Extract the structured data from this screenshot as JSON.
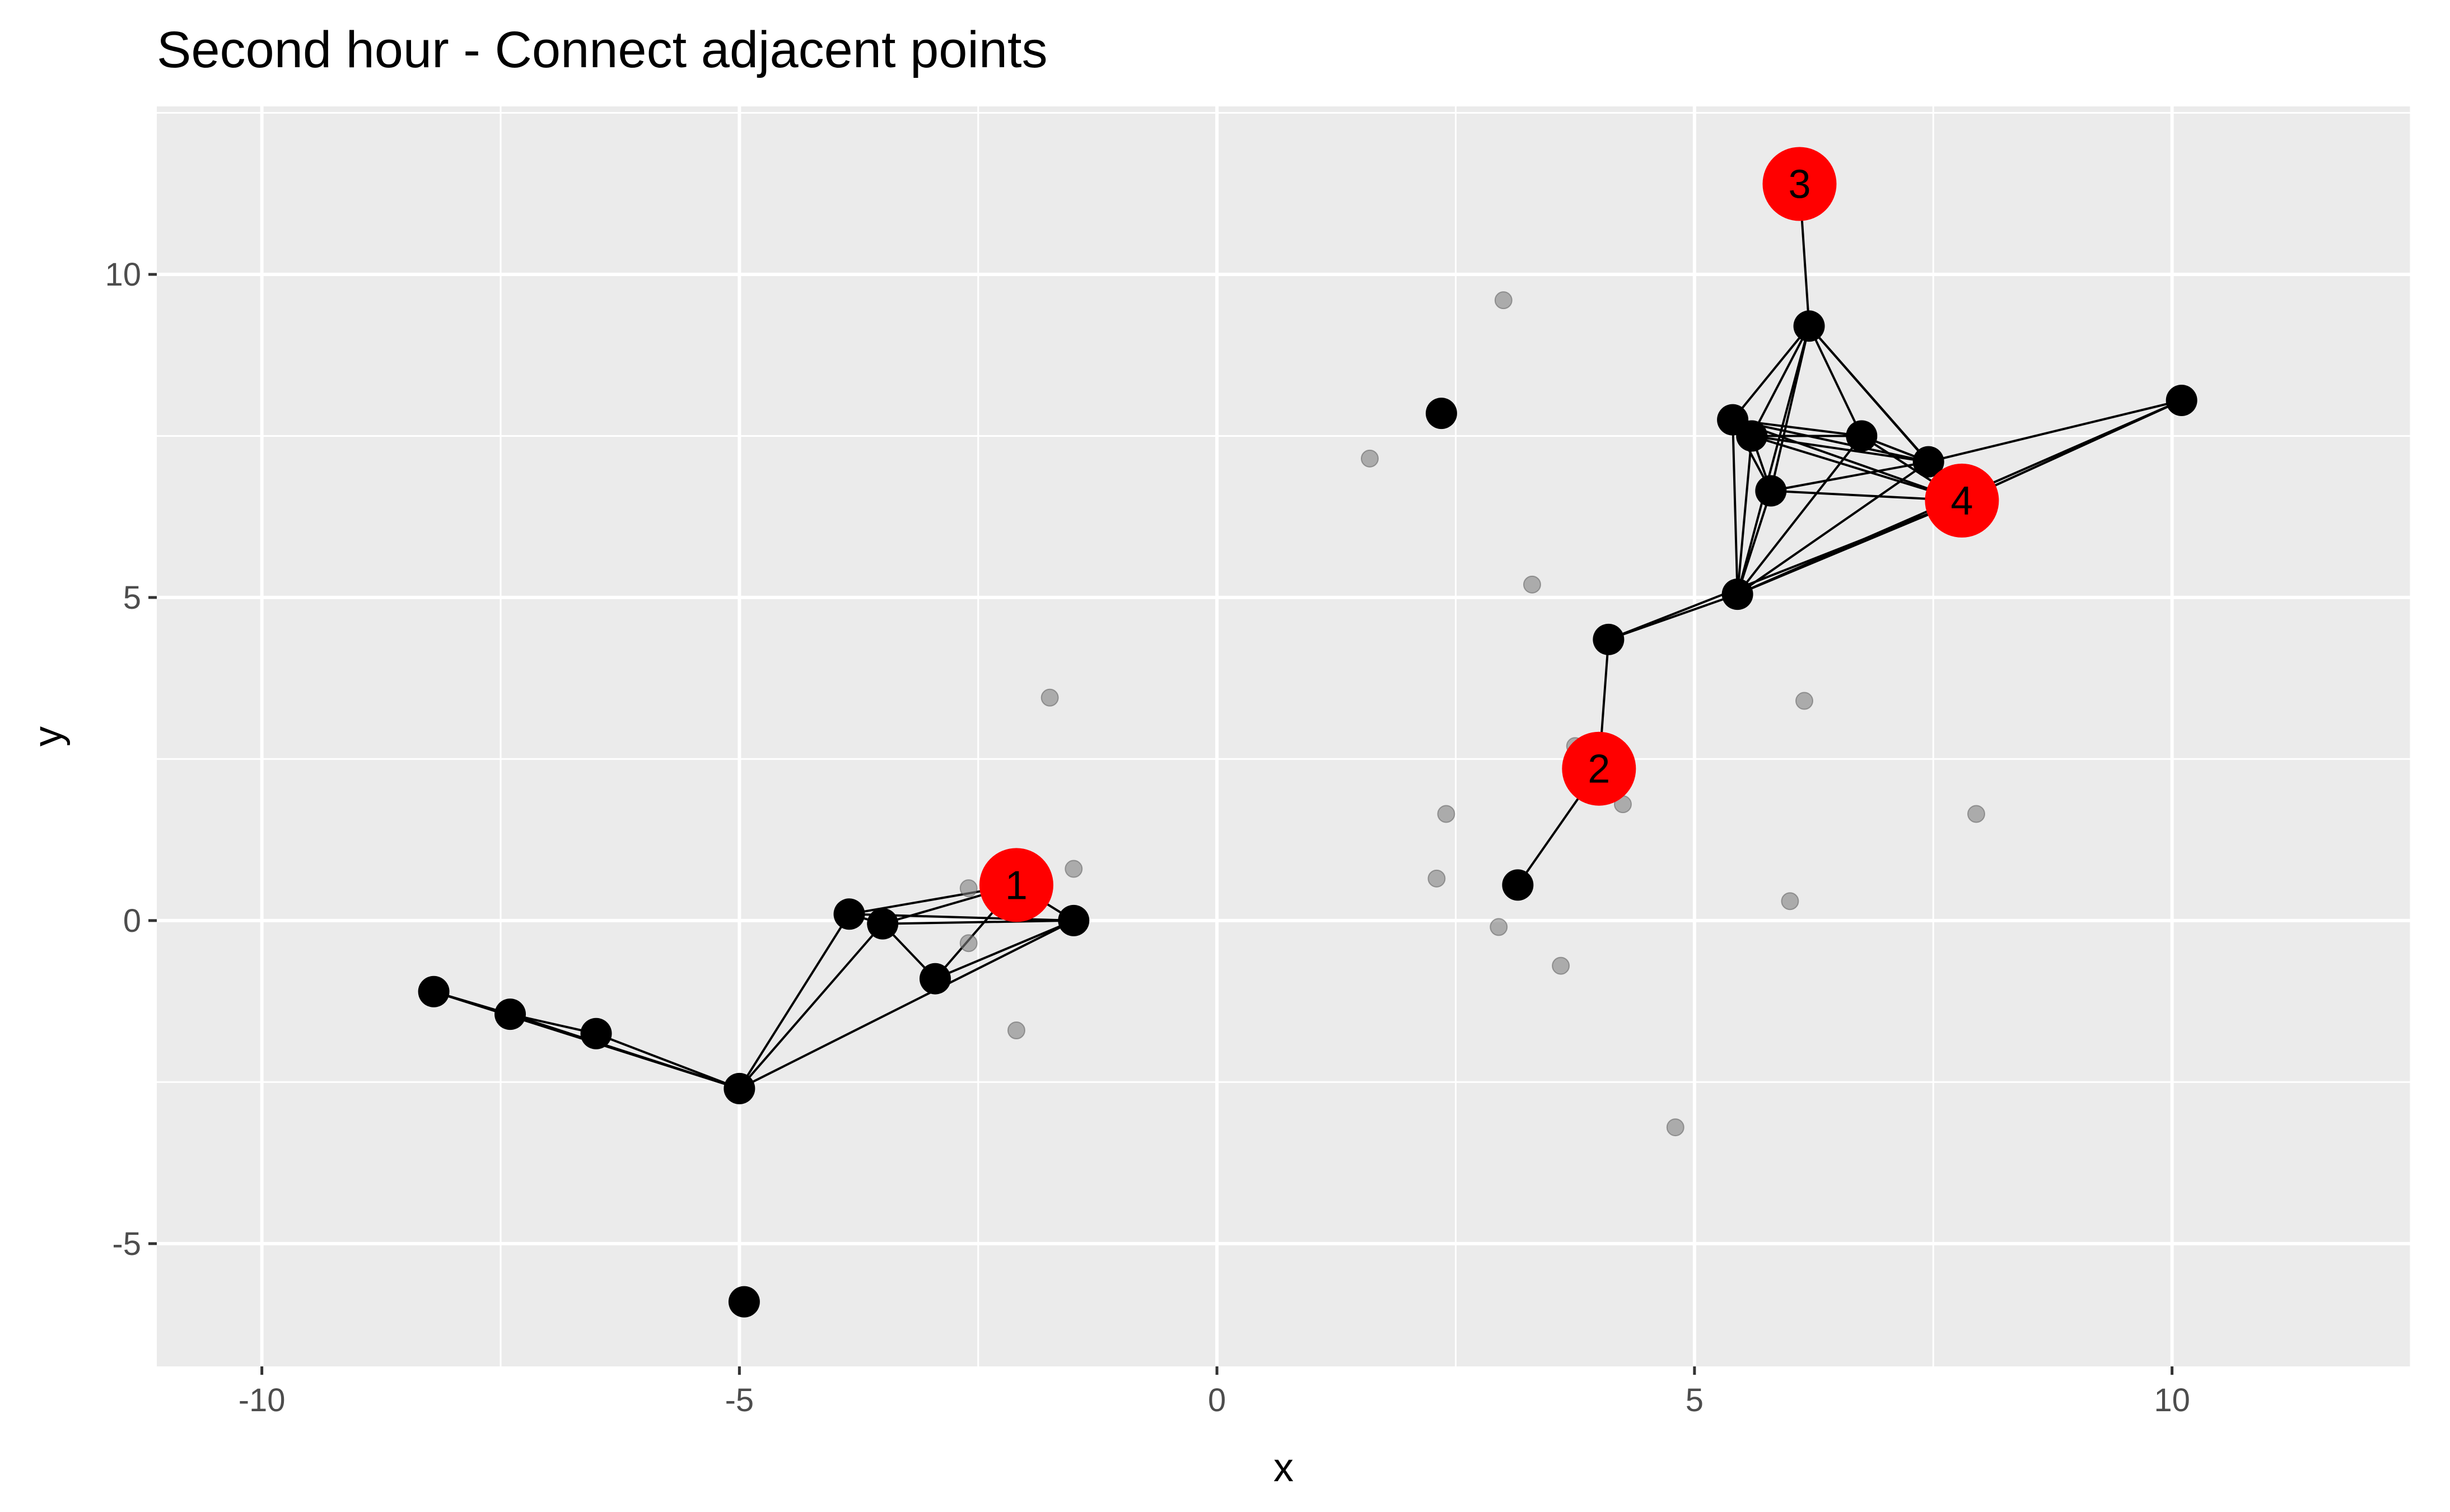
{
  "chart_data": {
    "type": "scatter",
    "title": "Second hour - Connect adjacent points",
    "xlabel": "x",
    "ylabel": "y",
    "xlim": [
      -11.1,
      12.5
    ],
    "ylim": [
      -6.9,
      12.6
    ],
    "x_ticks": [
      -10,
      -5,
      0,
      5,
      10
    ],
    "x_tick_labels": [
      "-10",
      "-5",
      "0",
      "5",
      "10"
    ],
    "y_ticks": [
      -5,
      0,
      5,
      10
    ],
    "y_tick_labels": [
      "-5",
      "0",
      "5",
      "10"
    ],
    "grid": true,
    "background_color": "#ebebeb",
    "grid_color": "#ffffff",
    "series": [
      {
        "role": "background-points",
        "color": "#808080",
        "points": [
          [
            3.0,
            9.6
          ],
          [
            1.6,
            7.15
          ],
          [
            3.3,
            5.2
          ],
          [
            -1.75,
            3.45
          ],
          [
            6.15,
            3.4
          ],
          [
            3.75,
            2.7
          ],
          [
            2.4,
            1.65
          ],
          [
            4.25,
            1.8
          ],
          [
            7.95,
            1.65
          ],
          [
            2.3,
            0.65
          ],
          [
            6.0,
            0.3
          ],
          [
            2.95,
            -0.1
          ],
          [
            3.6,
            -0.7
          ],
          [
            4.8,
            -3.2
          ],
          [
            -2.6,
            0.5
          ],
          [
            -1.5,
            0.8
          ],
          [
            -2.6,
            -0.35
          ],
          [
            -2.1,
            -1.7
          ]
        ]
      },
      {
        "role": "connected-points",
        "color": "#000000",
        "points": [
          [
            -8.2,
            -1.1
          ],
          [
            -7.4,
            -1.45
          ],
          [
            -6.5,
            -1.75
          ],
          [
            -5.0,
            -2.6
          ],
          [
            -3.85,
            0.1
          ],
          [
            -3.5,
            -0.05
          ],
          [
            -2.95,
            -0.9
          ],
          [
            -1.5,
            0.0
          ],
          [
            3.15,
            0.55
          ],
          [
            4.1,
            4.35
          ],
          [
            5.45,
            5.05
          ],
          [
            5.8,
            6.65
          ],
          [
            5.6,
            7.5
          ],
          [
            5.4,
            7.75
          ],
          [
            6.75,
            7.5
          ],
          [
            6.2,
            9.2
          ],
          [
            7.45,
            7.1
          ],
          [
            10.1,
            8.05
          ],
          [
            2.35,
            7.85
          ],
          [
            -4.95,
            -5.9
          ]
        ]
      },
      {
        "role": "centers",
        "color": "#ff0000",
        "points": [
          [
            -2.1,
            0.55
          ],
          [
            4.0,
            2.35
          ],
          [
            6.1,
            11.4
          ],
          [
            7.8,
            6.5
          ]
        ],
        "labels": [
          "1",
          "2",
          "3",
          "4"
        ]
      }
    ],
    "edges": [
      [
        0,
        1
      ],
      [
        1,
        2
      ],
      [
        0,
        3
      ],
      [
        1,
        3
      ],
      [
        2,
        3
      ],
      [
        3,
        4
      ],
      [
        3,
        5
      ],
      [
        3,
        7
      ],
      [
        4,
        5
      ],
      [
        4,
        7
      ],
      [
        5,
        7
      ],
      [
        5,
        6
      ],
      [
        6,
        7
      ],
      [
        5,
        "c1"
      ],
      [
        4,
        "c1"
      ],
      [
        7,
        "c1"
      ],
      [
        6,
        "c1"
      ],
      [
        8,
        "c2"
      ],
      [
        9,
        "c2"
      ],
      [
        9,
        10
      ],
      [
        9,
        "c4"
      ],
      [
        10,
        11
      ],
      [
        10,
        12
      ],
      [
        10,
        13
      ],
      [
        10,
        15
      ],
      [
        10,
        14
      ],
      [
        10,
        16
      ],
      [
        10,
        "c4"
      ],
      [
        10,
        17
      ],
      [
        11,
        12
      ],
      [
        11,
        13
      ],
      [
        11,
        16
      ],
      [
        11,
        "c4"
      ],
      [
        11,
        15
      ],
      [
        12,
        13
      ],
      [
        12,
        14
      ],
      [
        12,
        16
      ],
      [
        12,
        "c4"
      ],
      [
        12,
        15
      ],
      [
        13,
        14
      ],
      [
        13,
        16
      ],
      [
        13,
        15
      ],
      [
        13,
        "c4"
      ],
      [
        14,
        15
      ],
      [
        14,
        16
      ],
      [
        14,
        "c4"
      ],
      [
        15,
        "c3"
      ],
      [
        15,
        16
      ],
      [
        15,
        "c4"
      ],
      [
        16,
        "c4"
      ],
      [
        16,
        17
      ],
      [
        17,
        "c4"
      ]
    ]
  }
}
